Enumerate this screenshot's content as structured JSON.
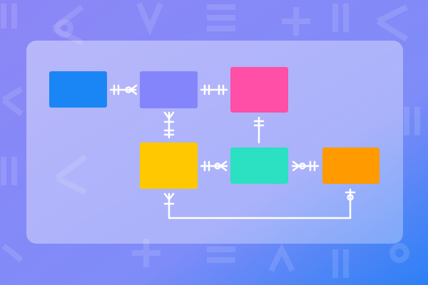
{
  "background": {
    "from": "#8c86f7",
    "to": "#2c80f5"
  },
  "panel": {
    "fill": "#ffffff",
    "opacity": 0.35
  },
  "connector_color": "#ffffff",
  "entities": [
    {
      "id": "blue",
      "color": "#1a86f5"
    },
    {
      "id": "purple",
      "color": "#8585fb"
    },
    {
      "id": "pink",
      "color": "#ff4fa6"
    },
    {
      "id": "yellow",
      "color": "#ffc800"
    },
    {
      "id": "teal",
      "color": "#2ce0c2"
    },
    {
      "id": "orange",
      "color": "#ff9a00"
    }
  ],
  "relationships": [
    {
      "from": "blue",
      "to": "purple",
      "from_end": "one-and-only-one",
      "to_end": "zero-or-many"
    },
    {
      "from": "purple",
      "to": "pink",
      "from_end": "one-and-only-one",
      "to_end": "one-and-only-one"
    },
    {
      "from": "purple",
      "to": "yellow",
      "from_end": "many",
      "to_end": "one-and-only-one"
    },
    {
      "from": "teal",
      "to": "pink",
      "from_end": "none",
      "to_end": "one-and-only-one"
    },
    {
      "from": "yellow",
      "to": "teal",
      "from_end": "one-and-only-one",
      "to_end": "zero-or-many"
    },
    {
      "from": "teal",
      "to": "orange",
      "from_end": "zero-or-many",
      "to_end": "one-and-only-one"
    },
    {
      "from": "yellow",
      "to": "orange",
      "from_end": "one-or-many",
      "to_end": "zero-or-one"
    }
  ]
}
